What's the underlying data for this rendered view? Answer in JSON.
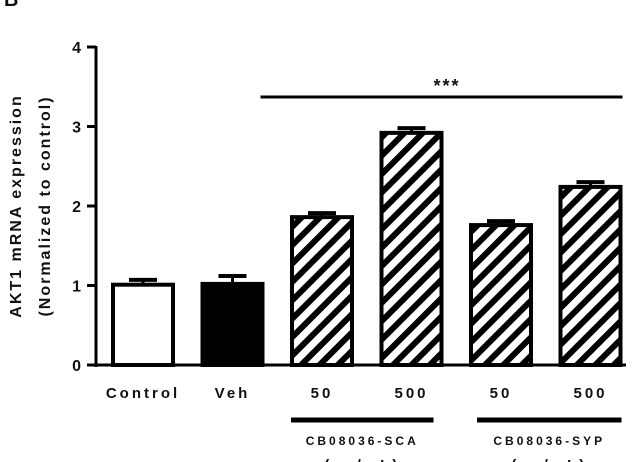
{
  "chart_data": {
    "type": "bar",
    "panel_label": "B",
    "ylabel": "AKT1 mRNA expression",
    "ylabel2": "(Normalized to control)",
    "ylim": [
      0,
      4
    ],
    "yticks": [
      "0",
      "1",
      "2",
      "3",
      "4"
    ],
    "categories": [
      "Control",
      "Veh",
      "50",
      "500",
      "50",
      "500"
    ],
    "values": [
      1.01,
      1.02,
      1.86,
      2.92,
      1.76,
      2.24
    ],
    "errors": [
      0.06,
      0.1,
      0.05,
      0.06,
      0.05,
      0.06
    ],
    "fills": [
      "white",
      "black",
      "hatched",
      "hatched",
      "hatched",
      "hatched"
    ],
    "groups": [
      {
        "label": "CB08036-SCA",
        "unit": "(μg/mL)",
        "members": [
          2,
          3
        ]
      },
      {
        "label": "CB08036-SYP",
        "unit": "(μg/mL)",
        "members": [
          4,
          5
        ]
      }
    ],
    "significance": {
      "label": "***",
      "from": 1,
      "to": 5
    },
    "grid": false,
    "colors": {
      "bar_outline": "#000000",
      "solid": "#000000",
      "empty": "#ffffff"
    }
  }
}
